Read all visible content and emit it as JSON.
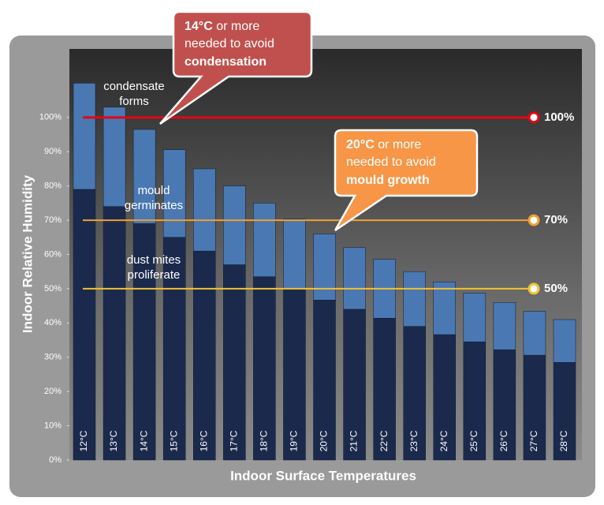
{
  "chart_data": {
    "type": "bar",
    "stacked": true,
    "y_label": "Indoor Relative Humidity",
    "x_label": "Indoor Surface Temperatures",
    "categories": [
      "12°C",
      "13°C",
      "14°C",
      "15°C",
      "16°C",
      "17°C",
      "18°C",
      "19°C",
      "20°C",
      "21°C",
      "22°C",
      "23°C",
      "24°C",
      "25°C",
      "26°C",
      "27°C",
      "28°C"
    ],
    "series": [
      {
        "color": "#1b2a4c",
        "values": [
          79,
          74,
          69,
          65,
          61,
          57,
          53.5,
          50,
          46.7,
          44,
          41.4,
          39,
          36.6,
          34.5,
          32.2,
          30.6,
          28.5
        ]
      },
      {
        "color": "#4a78b2",
        "values": [
          31,
          29,
          27.5,
          25.6,
          24,
          23,
          21.5,
          20.3,
          19.3,
          18,
          17.2,
          16,
          15.4,
          14.2,
          13.8,
          12.8,
          12.5
        ]
      }
    ],
    "ylim": [
      0,
      120
    ],
    "yticks": [
      {
        "value": 0,
        "label": "0%"
      },
      {
        "value": 10,
        "label": "10%"
      },
      {
        "value": 20,
        "label": "20%"
      },
      {
        "value": 30,
        "label": "30%"
      },
      {
        "value": 40,
        "label": "40%"
      },
      {
        "value": 50,
        "label": "50%"
      },
      {
        "value": 60,
        "label": "60%"
      },
      {
        "value": 70,
        "label": "70%"
      },
      {
        "value": 80,
        "label": "80%"
      },
      {
        "value": 90,
        "label": "90%"
      },
      {
        "value": 100,
        "label": "100%"
      }
    ],
    "reference_lines": [
      {
        "value": 100,
        "label": "100%",
        "color": "#e30613"
      },
      {
        "value": 70,
        "label": "70%",
        "color": "#f0a030"
      },
      {
        "value": 50,
        "label": "50%",
        "color": "#f2c230"
      }
    ],
    "annotations": [
      [
        "condensate",
        "forms"
      ],
      [
        "mould",
        "germinates"
      ],
      [
        "dust mites",
        "proliferate"
      ]
    ],
    "callouts": [
      {
        "parts": [
          "14°C",
          " or more",
          "needed to avoid",
          "condensation"
        ],
        "color": "#c0504d"
      },
      {
        "parts": [
          "20°C",
          " or more",
          "needed to avoid",
          "mould growth"
        ],
        "color": "#f79646"
      }
    ]
  }
}
